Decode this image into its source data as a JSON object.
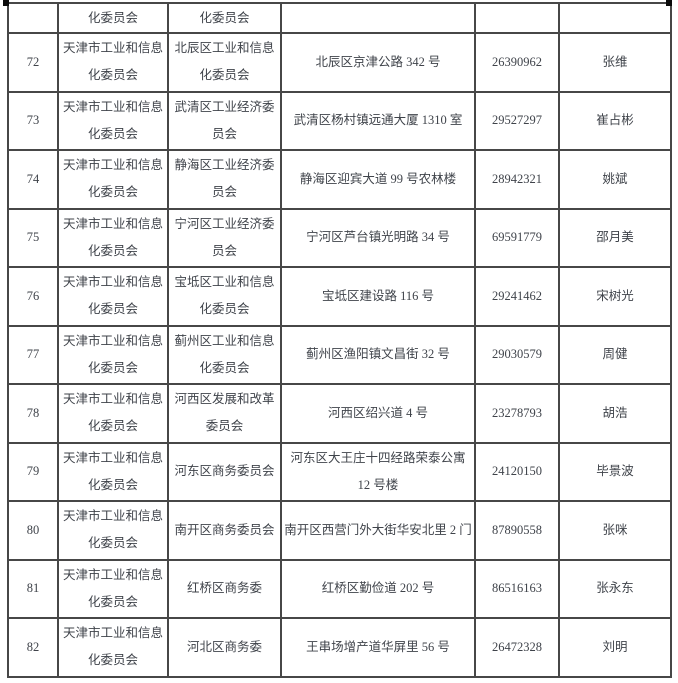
{
  "page": {
    "background": "#ffffff",
    "text_color": "#3f434a",
    "border_color": "#474747",
    "artifact_color": "#0a0a0a"
  },
  "table": {
    "carryover_row": {
      "no": "",
      "org_fragment": "化委员会",
      "dept_fragment": "化委员会",
      "address": "",
      "phone": "",
      "contact": ""
    },
    "rows": [
      {
        "no": "72",
        "org": "天津市工业和信息化委员会",
        "dept": "北辰区工业和信息化委员会",
        "address": "北辰区京津公路 342 号",
        "phone": "26390962",
        "contact": "张维"
      },
      {
        "no": "73",
        "org": "天津市工业和信息化委员会",
        "dept": "武清区工业经济委员会",
        "address": "武清区杨村镇远通大厦 1310 室",
        "phone": "29527297",
        "contact": "崔占彬"
      },
      {
        "no": "74",
        "org": "天津市工业和信息化委员会",
        "dept": "静海区工业经济委员会",
        "address": "静海区迎宾大道 99 号农林楼",
        "phone": "28942321",
        "contact": "姚斌"
      },
      {
        "no": "75",
        "org": "天津市工业和信息化委员会",
        "dept": "宁河区工业经济委员会",
        "address": "宁河区芦台镇光明路 34 号",
        "phone": "69591779",
        "contact": "邵月美"
      },
      {
        "no": "76",
        "org": "天津市工业和信息化委员会",
        "dept": "宝坻区工业和信息化委员会",
        "address": "宝坻区建设路 116 号",
        "phone": "29241462",
        "contact": "宋树光"
      },
      {
        "no": "77",
        "org": "天津市工业和信息化委员会",
        "dept": "蓟州区工业和信息化委员会",
        "address": "蓟州区渔阳镇文昌街 32 号",
        "phone": "29030579",
        "contact": "周健"
      },
      {
        "no": "78",
        "org": "天津市工业和信息化委员会",
        "dept": "河西区发展和改革委员会",
        "address": "河西区绍兴道 4 号",
        "phone": "23278793",
        "contact": "胡浩"
      },
      {
        "no": "79",
        "org": "天津市工业和信息化委员会",
        "dept": "河东区商务委员会",
        "address": "河东区大王庄十四经路荣泰公寓 12 号楼",
        "phone": "24120150",
        "contact": "毕景波"
      },
      {
        "no": "80",
        "org": "天津市工业和信息化委员会",
        "dept": "南开区商务委员会",
        "address": "南开区西营门外大街华安北里 2 门",
        "phone": "87890558",
        "contact": "张咪"
      },
      {
        "no": "81",
        "org": "天津市工业和信息化委员会",
        "dept": "红桥区商务委",
        "address": "红桥区勤俭道 202 号",
        "phone": "86516163",
        "contact": "张永东"
      },
      {
        "no": "82",
        "org": "天津市工业和信息化委员会",
        "dept": "河北区商务委",
        "address": "王串场增产道华屏里 56 号",
        "phone": "26472328",
        "contact": "刘明"
      }
    ]
  }
}
